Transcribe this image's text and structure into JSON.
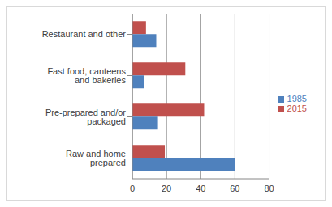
{
  "chart_data": {
    "type": "bar",
    "orientation": "horizontal",
    "categories": [
      "Restaurant and other",
      "Fast food, canteens and bakeries",
      "Pre-prepared and/or packaged",
      "Raw and home prepared"
    ],
    "series": [
      {
        "name": "2015",
        "color": "#c0504d",
        "values": [
          8,
          31,
          42,
          19
        ]
      },
      {
        "name": "1985",
        "color": "#4f81bd",
        "values": [
          14,
          7,
          15,
          60
        ]
      }
    ],
    "xlim": [
      0,
      80
    ],
    "xticks": [
      0,
      20,
      40,
      60,
      80
    ],
    "grid": true,
    "legend": "right"
  }
}
